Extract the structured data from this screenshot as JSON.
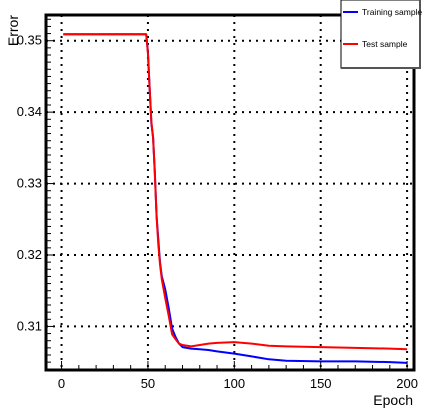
{
  "chart_data": {
    "type": "line",
    "title": "",
    "xlabel": "Epoch",
    "ylabel": "Error",
    "xlim": [
      -9,
      204
    ],
    "ylim": [
      0.3039,
      0.3536
    ],
    "xticks": [
      0,
      50,
      100,
      150,
      200
    ],
    "xtick_labels": [
      "0",
      "50",
      "100",
      "150",
      "200"
    ],
    "yticks": [
      0.31,
      0.32,
      0.33,
      0.34,
      0.35
    ],
    "ytick_labels": [
      "0.31",
      "0.32",
      "0.33",
      "0.34",
      "0.35"
    ],
    "grid": true,
    "legend_position": "top-right",
    "series": [
      {
        "name": "Training sample",
        "color": "#0000ff",
        "x": [
          1,
          49,
          50,
          51,
          52,
          53,
          54,
          55,
          56,
          57,
          58,
          60,
          62,
          64,
          66,
          68,
          70,
          75,
          80,
          85,
          90,
          100,
          110,
          120,
          130,
          150,
          170,
          190,
          200
        ],
        "y": [
          0.3509,
          0.3509,
          0.3485,
          0.3432,
          0.3384,
          0.3364,
          0.3317,
          0.3254,
          0.3222,
          0.319,
          0.317,
          0.3152,
          0.3126,
          0.3097,
          0.3085,
          0.3076,
          0.3071,
          0.3069,
          0.3068,
          0.3067,
          0.3065,
          0.3062,
          0.3058,
          0.3054,
          0.3052,
          0.3051,
          0.3051,
          0.305,
          0.3049
        ]
      },
      {
        "name": "Test sample",
        "color": "#ff0000",
        "x": [
          1,
          49,
          50,
          51,
          52,
          53,
          54,
          55,
          56,
          57,
          58,
          60,
          62,
          64,
          66,
          68,
          70,
          75,
          80,
          85,
          90,
          100,
          110,
          120,
          130,
          150,
          170,
          190,
          200
        ],
        "y": [
          0.3509,
          0.3509,
          0.3483,
          0.3432,
          0.3386,
          0.3365,
          0.3314,
          0.3254,
          0.3215,
          0.3187,
          0.3166,
          0.314,
          0.3115,
          0.3089,
          0.3082,
          0.3076,
          0.3074,
          0.3072,
          0.3074,
          0.3076,
          0.3077,
          0.3078,
          0.3076,
          0.3073,
          0.3072,
          0.3071,
          0.307,
          0.3069,
          0.3068
        ]
      }
    ]
  }
}
